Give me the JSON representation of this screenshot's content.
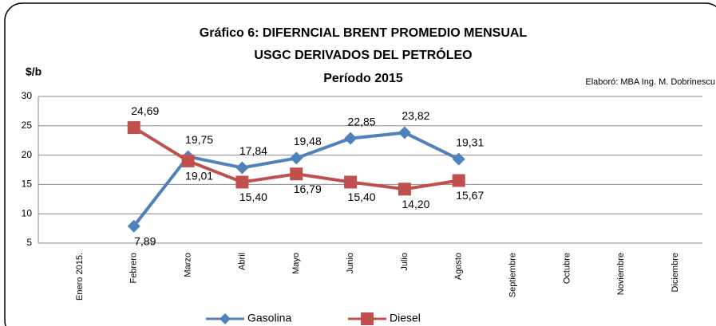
{
  "chart_data": {
    "type": "line",
    "title": [
      "Gráfico 6: DIFERNCIAL BRENT PROMEDIO MENSUAL",
      "USGC DERIVADOS DEL PETRÓLEO",
      "Período 2015"
    ],
    "y_label": "$/b",
    "annotation": "Elaboró: MBA Ing. M. Dobrinescu",
    "categories": [
      "Enero 2015.",
      "Febrero",
      "Marzo",
      "Abril",
      "Mayo",
      "Junio",
      "Julio",
      "Agosto",
      "Septiembre",
      "Octubre",
      "Noviembre",
      "Diciembre"
    ],
    "series": [
      {
        "name": "Gasolina",
        "color": "#4f81bd",
        "label_color": "#1f3864",
        "marker": "diamond",
        "values": [
          null,
          7.89,
          19.75,
          17.84,
          19.48,
          22.85,
          23.82,
          19.31,
          null,
          null,
          null,
          null
        ],
        "value_labels": [
          null,
          "7,89",
          "19,75",
          "17,84",
          "19,48",
          "22,85",
          "23,82",
          "19,31",
          null,
          null,
          null,
          null
        ]
      },
      {
        "name": "Diesel",
        "color": "#c0504d",
        "label_color": "#e02020",
        "marker": "square",
        "values": [
          null,
          24.69,
          19.01,
          15.4,
          16.79,
          15.4,
          14.2,
          15.67,
          null,
          null,
          null,
          null
        ],
        "value_labels": [
          null,
          "24,69",
          "19,01",
          "15,40",
          "16,79",
          "15,40",
          "14,20",
          "15,67",
          null,
          null,
          null,
          null
        ]
      }
    ],
    "ylim": [
      5,
      30
    ],
    "yticks": [
      5,
      10,
      15,
      20,
      25,
      30
    ],
    "grid": true
  }
}
